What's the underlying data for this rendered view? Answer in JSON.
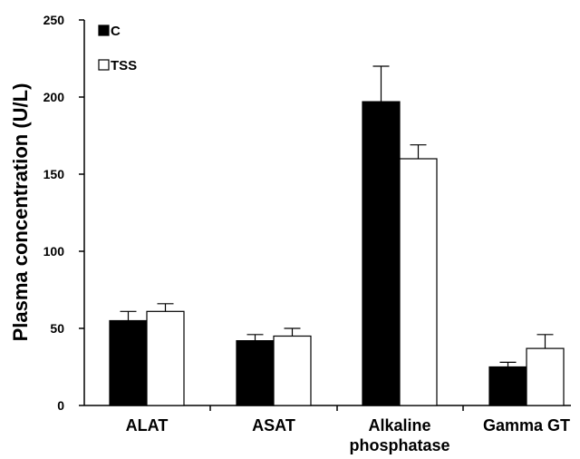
{
  "chart_data": {
    "type": "bar",
    "title": "",
    "xlabel": "",
    "ylabel": "Plasma concentration (U/L)",
    "ylim": [
      0,
      250
    ],
    "yticks": [
      0,
      50,
      100,
      150,
      200,
      250
    ],
    "categories": [
      [
        "ALAT"
      ],
      [
        "ASAT"
      ],
      [
        "Alkaline",
        "phosphatase"
      ],
      [
        "Gamma GT"
      ]
    ],
    "series": [
      {
        "name": "C",
        "color": "#000000",
        "values": [
          55,
          42,
          197,
          25
        ],
        "errors": [
          6,
          4,
          23,
          3
        ]
      },
      {
        "name": "TSS",
        "color": "#ffffff",
        "values": [
          61,
          45,
          160,
          37
        ],
        "errors": [
          5,
          5,
          9,
          9
        ]
      }
    ],
    "legend": "top-left",
    "grid": false
  }
}
